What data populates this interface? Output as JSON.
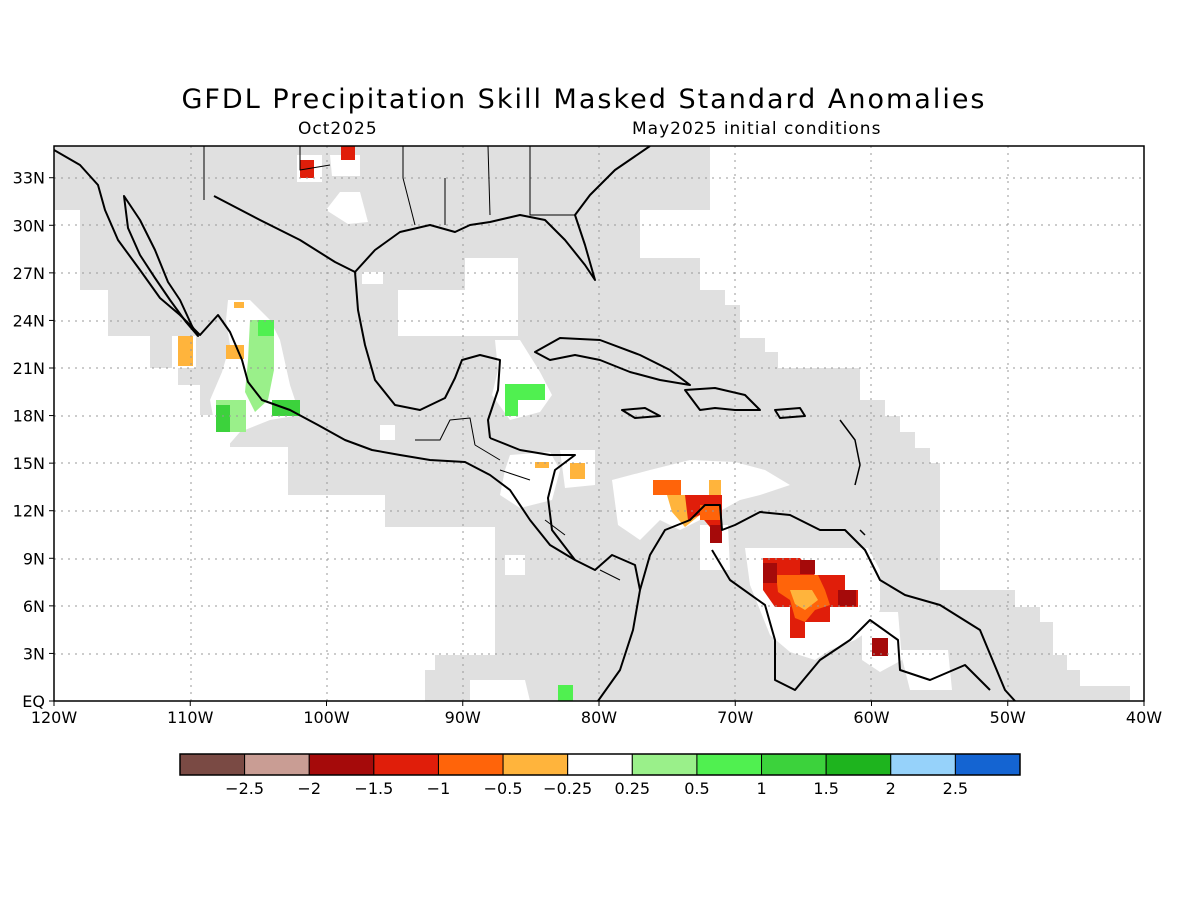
{
  "title": "GFDL Precipitation Skill Masked Standard Anomalies",
  "subtitle_left": "Oct2025",
  "subtitle_right": "May2025 initial conditions",
  "map": {
    "lon_range": [
      -120,
      -40
    ],
    "lat_range": [
      0,
      35
    ],
    "lon_labels": [
      "120W",
      "110W",
      "100W",
      "90W",
      "80W",
      "70W",
      "60W",
      "50W",
      "40W"
    ],
    "lat_labels": [
      "EQ",
      "3N",
      "6N",
      "9N",
      "12N",
      "15N",
      "18N",
      "21N",
      "24N",
      "27N",
      "30N",
      "33N"
    ],
    "mask_color": "#e0e0e0",
    "grid": "dotted"
  },
  "legend": {
    "tick_labels": [
      "−2.5",
      "−2",
      "−1.5",
      "−1",
      "−0.5",
      "−0.25",
      "0.25",
      "0.5",
      "1",
      "1.5",
      "2",
      "2.5"
    ],
    "colors": [
      "#7a4a44",
      "#c99d94",
      "#a50a0a",
      "#e01e0a",
      "#ff640a",
      "#ffb43c",
      "#ffffff",
      "#9af08a",
      "#50f050",
      "#3cd23c",
      "#1eb41e",
      "#96d2fa",
      "#1464d2"
    ]
  },
  "anomalies": [
    {
      "region": "NW Venezuela",
      "level": "-1.5 to -1"
    },
    {
      "region": "Lake Maracaibo",
      "level": "-2 to -1.5"
    },
    {
      "region": "Central Venezuela",
      "level": "-1.5 to -0.5"
    },
    {
      "region": "Guyana border",
      "level": "-2 to -1.5"
    },
    {
      "region": "Southern Texas",
      "level": "-2 to -1.5"
    },
    {
      "region": "Western Caribbean",
      "level": "-0.5 to -0.25"
    },
    {
      "region": "Gulf of Honduras",
      "level": "0.5 to 1.5"
    },
    {
      "region": "Western Mexico",
      "level": "0.25 to 1"
    },
    {
      "region": "Southern Mexico coast",
      "level": "1 to 1.5"
    },
    {
      "region": "Panama Pacific",
      "level": "0.5 to 1"
    }
  ]
}
